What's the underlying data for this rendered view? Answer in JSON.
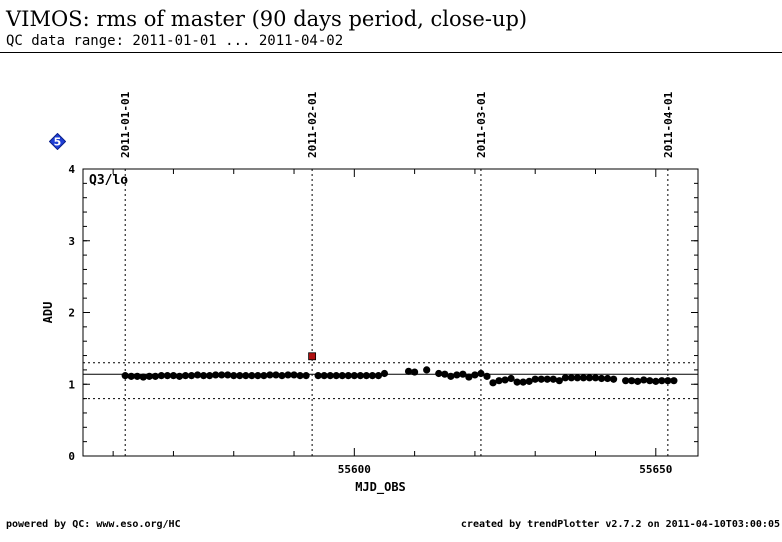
{
  "header": {
    "title": "VIMOS: rms of master (90 days period, close-up)",
    "subtitle": "QC data range: 2011-01-01 ... 2011-04-02"
  },
  "badge": {
    "label": "5",
    "icon": "diamond-badge-icon",
    "color": "#1f3fd6"
  },
  "footer": {
    "left": "powered by QC: www.eso.org/HC",
    "right": "created by trendPlotter v2.7.2 on 2011-04-10T03:00:05"
  },
  "chart_data": {
    "type": "scatter",
    "panel_label": "Q3/lo",
    "xlabel": "MJD_OBS",
    "ylabel": "ADU",
    "xlim": [
      55555,
      55657
    ],
    "ylim": [
      0,
      4
    ],
    "x_ticks": [
      55600,
      55650
    ],
    "y_ticks": [
      0,
      1,
      2,
      3,
      4
    ],
    "date_markers": [
      {
        "label": "2011-01-01",
        "mjd": 55562
      },
      {
        "label": "2011-02-01",
        "mjd": 55593
      },
      {
        "label": "2011-03-01",
        "mjd": 55621
      },
      {
        "label": "2011-04-01",
        "mjd": 55652
      }
    ],
    "reference_line": 1.14,
    "threshold_lines": [
      0.8,
      1.3
    ],
    "outlier": {
      "x": 55593,
      "y": 1.39,
      "color": "#b01010"
    },
    "points": [
      {
        "x": 55562,
        "y": 1.12
      },
      {
        "x": 55563,
        "y": 1.11
      },
      {
        "x": 55564,
        "y": 1.11
      },
      {
        "x": 55565,
        "y": 1.1
      },
      {
        "x": 55566,
        "y": 1.11
      },
      {
        "x": 55567,
        "y": 1.11
      },
      {
        "x": 55568,
        "y": 1.12
      },
      {
        "x": 55569,
        "y": 1.12
      },
      {
        "x": 55570,
        "y": 1.12
      },
      {
        "x": 55571,
        "y": 1.11
      },
      {
        "x": 55572,
        "y": 1.12
      },
      {
        "x": 55573,
        "y": 1.12
      },
      {
        "x": 55574,
        "y": 1.13
      },
      {
        "x": 55575,
        "y": 1.12
      },
      {
        "x": 55576,
        "y": 1.12
      },
      {
        "x": 55577,
        "y": 1.13
      },
      {
        "x": 55578,
        "y": 1.13
      },
      {
        "x": 55579,
        "y": 1.13
      },
      {
        "x": 55580,
        "y": 1.12
      },
      {
        "x": 55581,
        "y": 1.12
      },
      {
        "x": 55582,
        "y": 1.12
      },
      {
        "x": 55583,
        "y": 1.12
      },
      {
        "x": 55584,
        "y": 1.12
      },
      {
        "x": 55585,
        "y": 1.12
      },
      {
        "x": 55586,
        "y": 1.13
      },
      {
        "x": 55587,
        "y": 1.13
      },
      {
        "x": 55588,
        "y": 1.12
      },
      {
        "x": 55589,
        "y": 1.13
      },
      {
        "x": 55590,
        "y": 1.13
      },
      {
        "x": 55591,
        "y": 1.12
      },
      {
        "x": 55592,
        "y": 1.12
      },
      {
        "x": 55594,
        "y": 1.12
      },
      {
        "x": 55595,
        "y": 1.12
      },
      {
        "x": 55596,
        "y": 1.12
      },
      {
        "x": 55597,
        "y": 1.12
      },
      {
        "x": 55598,
        "y": 1.12
      },
      {
        "x": 55599,
        "y": 1.12
      },
      {
        "x": 55600,
        "y": 1.12
      },
      {
        "x": 55601,
        "y": 1.12
      },
      {
        "x": 55602,
        "y": 1.12
      },
      {
        "x": 55603,
        "y": 1.12
      },
      {
        "x": 55604,
        "y": 1.12
      },
      {
        "x": 55605,
        "y": 1.15
      },
      {
        "x": 55609,
        "y": 1.18
      },
      {
        "x": 55610,
        "y": 1.17
      },
      {
        "x": 55612,
        "y": 1.2
      },
      {
        "x": 55614,
        "y": 1.15
      },
      {
        "x": 55615,
        "y": 1.14
      },
      {
        "x": 55616,
        "y": 1.11
      },
      {
        "x": 55617,
        "y": 1.13
      },
      {
        "x": 55618,
        "y": 1.14
      },
      {
        "x": 55619,
        "y": 1.1
      },
      {
        "x": 55620,
        "y": 1.13
      },
      {
        "x": 55621,
        "y": 1.15
      },
      {
        "x": 55622,
        "y": 1.11
      },
      {
        "x": 55623,
        "y": 1.02
      },
      {
        "x": 55624,
        "y": 1.05
      },
      {
        "x": 55625,
        "y": 1.06
      },
      {
        "x": 55626,
        "y": 1.08
      },
      {
        "x": 55627,
        "y": 1.03
      },
      {
        "x": 55628,
        "y": 1.03
      },
      {
        "x": 55629,
        "y": 1.04
      },
      {
        "x": 55630,
        "y": 1.07
      },
      {
        "x": 55631,
        "y": 1.07
      },
      {
        "x": 55632,
        "y": 1.07
      },
      {
        "x": 55633,
        "y": 1.07
      },
      {
        "x": 55634,
        "y": 1.05
      },
      {
        "x": 55635,
        "y": 1.09
      },
      {
        "x": 55636,
        "y": 1.09
      },
      {
        "x": 55637,
        "y": 1.09
      },
      {
        "x": 55638,
        "y": 1.09
      },
      {
        "x": 55639,
        "y": 1.09
      },
      {
        "x": 55640,
        "y": 1.09
      },
      {
        "x": 55641,
        "y": 1.08
      },
      {
        "x": 55642,
        "y": 1.08
      },
      {
        "x": 55643,
        "y": 1.07
      },
      {
        "x": 55645,
        "y": 1.05
      },
      {
        "x": 55646,
        "y": 1.05
      },
      {
        "x": 55647,
        "y": 1.04
      },
      {
        "x": 55648,
        "y": 1.06
      },
      {
        "x": 55649,
        "y": 1.05
      },
      {
        "x": 55650,
        "y": 1.04
      },
      {
        "x": 55651,
        "y": 1.05
      },
      {
        "x": 55652,
        "y": 1.05
      },
      {
        "x": 55653,
        "y": 1.05
      }
    ]
  }
}
